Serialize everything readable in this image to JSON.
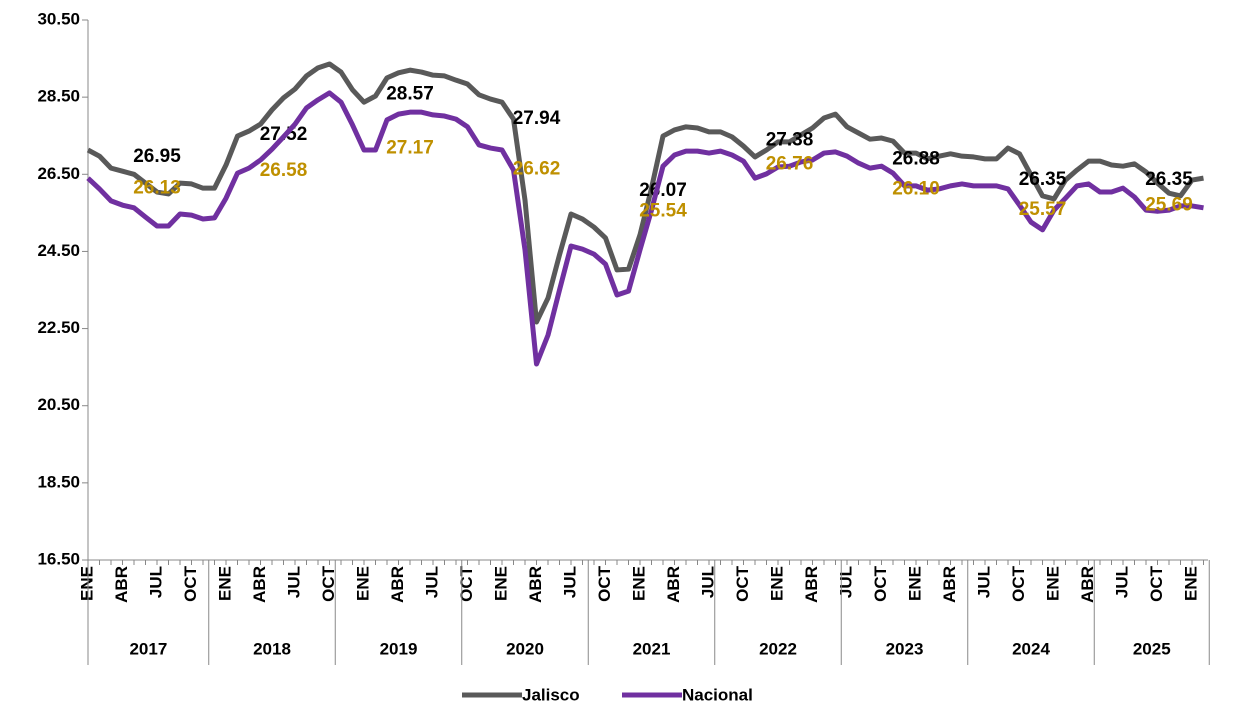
{
  "chart_data": {
    "type": "line",
    "categories": [
      "ENE",
      null,
      null,
      "ABR",
      null,
      null,
      "JUL",
      null,
      null,
      "OCT",
      null,
      null,
      "ENE",
      null,
      null,
      "ABR",
      null,
      null,
      "JUL",
      null,
      null,
      "OCT",
      null,
      null,
      "ENE",
      null,
      null,
      "ABR",
      null,
      null,
      "JUL",
      null,
      null,
      "OCT",
      null,
      null,
      "ENE",
      null,
      null,
      "ABR",
      null,
      null,
      "JUL",
      null,
      null,
      "OCT",
      null,
      null,
      "ENE",
      null,
      null,
      "ABR",
      null,
      null,
      "JUL",
      null,
      null,
      "OCT",
      null,
      null,
      "ENE",
      null,
      null,
      "ABR",
      null,
      null,
      "JUL",
      null,
      null,
      "OCT",
      null,
      null,
      "ENE",
      null,
      null,
      "ABR",
      null,
      null,
      "JUL",
      null,
      null,
      "OCT",
      null,
      null,
      "ENE",
      null,
      null,
      "ABR",
      null,
      null,
      "JUL",
      null,
      null,
      "OCT",
      null,
      null,
      "ENE",
      null
    ],
    "groups": [
      "2017",
      "2018",
      "2019",
      "2020",
      "2021",
      "2022",
      "2023",
      "2024",
      "2025"
    ],
    "ylim": [
      16.5,
      30.5
    ],
    "yticks": [
      {
        "value": 16.5,
        "label": "16.50"
      },
      {
        "value": 18.5,
        "label": "18.50"
      },
      {
        "value": 20.5,
        "label": "20.50"
      },
      {
        "value": 22.5,
        "label": "22.50"
      },
      {
        "value": 24.5,
        "label": "24.50"
      },
      {
        "value": 26.5,
        "label": "26.50"
      },
      {
        "value": 28.5,
        "label": "28.50"
      },
      {
        "value": 30.5,
        "label": "30.50"
      }
    ],
    "legend": "bottom",
    "series": [
      {
        "name": "Jalisco",
        "color": "#595959",
        "label_color": "#000000",
        "values": [
          27.13,
          26.97,
          26.66,
          26.58,
          26.5,
          26.27,
          26.04,
          25.99,
          26.27,
          26.25,
          26.14,
          26.14,
          26.74,
          27.49,
          27.62,
          27.8,
          28.17,
          28.48,
          28.71,
          29.05,
          29.26,
          29.36,
          29.15,
          28.69,
          28.37,
          28.53,
          29.0,
          29.13,
          29.2,
          29.15,
          29.07,
          29.05,
          28.94,
          28.84,
          28.56,
          28.45,
          28.37,
          27.93,
          25.83,
          22.67,
          23.29,
          24.41,
          25.47,
          25.34,
          25.13,
          24.85,
          24.02,
          24.04,
          24.93,
          26.14,
          27.49,
          27.65,
          27.73,
          27.7,
          27.6,
          27.6,
          27.47,
          27.23,
          26.95,
          27.13,
          27.34,
          27.34,
          27.52,
          27.7,
          27.96,
          28.06,
          27.73,
          27.57,
          27.41,
          27.44,
          27.36,
          27.05,
          27.05,
          26.9,
          26.97,
          27.03,
          26.97,
          26.95,
          26.9,
          26.9,
          27.18,
          27.03,
          26.48,
          25.94,
          25.86,
          26.35,
          26.61,
          26.84,
          26.84,
          26.74,
          26.71,
          26.77,
          26.56,
          26.27,
          26.01,
          25.94,
          26.35,
          26.4
        ],
        "group_labels": [
          26.95,
          27.52,
          28.57,
          27.94,
          26.07,
          27.38,
          26.88,
          26.35,
          26.35
        ]
      },
      {
        "name": "Nacional",
        "color": "#7030a0",
        "label_color": "#bf9000",
        "values": [
          26.4,
          26.12,
          25.81,
          25.7,
          25.63,
          25.39,
          25.16,
          25.16,
          25.47,
          25.44,
          25.34,
          25.37,
          25.88,
          26.53,
          26.66,
          26.87,
          27.15,
          27.47,
          27.8,
          28.22,
          28.43,
          28.61,
          28.37,
          27.78,
          27.13,
          27.13,
          27.91,
          28.06,
          28.11,
          28.11,
          28.04,
          28.01,
          27.93,
          27.73,
          27.26,
          27.18,
          27.13,
          26.61,
          24.54,
          21.58,
          22.33,
          23.5,
          24.64,
          24.56,
          24.43,
          24.17,
          23.37,
          23.47,
          24.54,
          25.57,
          26.71,
          27.0,
          27.1,
          27.1,
          27.05,
          27.1,
          27.0,
          26.84,
          26.4,
          26.51,
          26.69,
          26.71,
          26.82,
          26.87,
          27.05,
          27.08,
          26.97,
          26.79,
          26.66,
          26.71,
          26.53,
          26.2,
          26.2,
          26.09,
          26.12,
          26.2,
          26.25,
          26.2,
          26.2,
          26.2,
          26.12,
          25.7,
          25.26,
          25.06,
          25.57,
          25.88,
          26.2,
          26.25,
          26.04,
          26.04,
          26.14,
          25.91,
          25.57,
          25.54,
          25.57,
          25.68,
          25.68,
          25.63
        ],
        "group_labels": [
          26.13,
          26.58,
          27.17,
          26.62,
          25.54,
          26.76,
          {
            "value": 26.1,
            "label": "26.10"
          },
          25.57,
          25.69
        ]
      }
    ]
  }
}
